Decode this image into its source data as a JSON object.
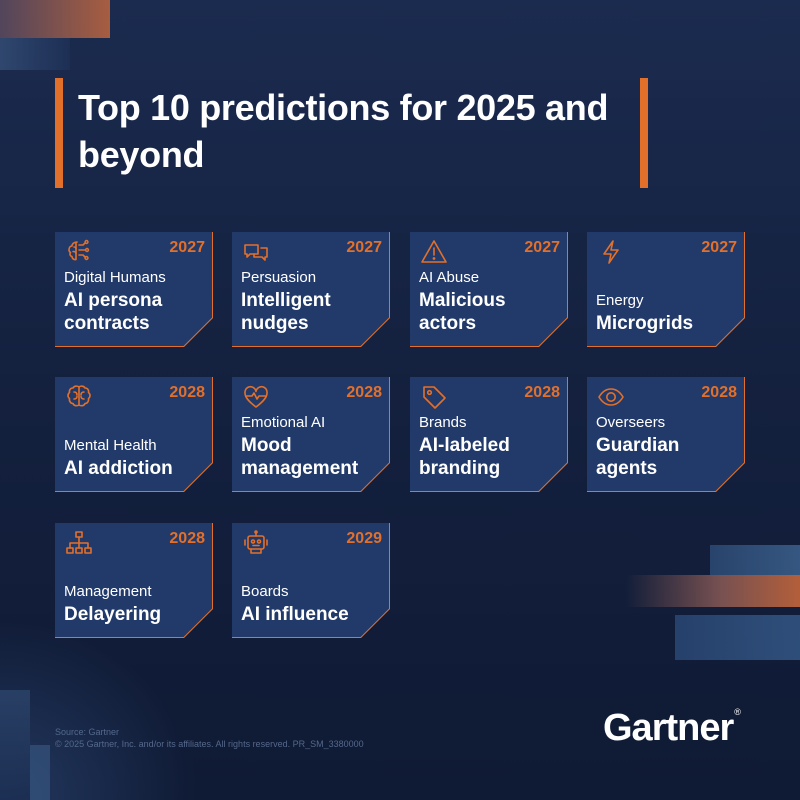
{
  "title": "Top 10 predictions for 2025 and beyond",
  "predictions": [
    {
      "year": "2027",
      "category": "Digital Humans",
      "headline": "AI persona contracts",
      "icon": "ai-brain-icon"
    },
    {
      "year": "2027",
      "category": "Persuasion",
      "headline": "Intelligent nudges",
      "icon": "chat-bubbles-icon"
    },
    {
      "year": "2027",
      "category": "AI Abuse",
      "headline": "Malicious actors",
      "icon": "warning-icon"
    },
    {
      "year": "2027",
      "category": "Energy",
      "headline": "Microgrids",
      "icon": "lightning-icon"
    },
    {
      "year": "2028",
      "category": "Mental Health",
      "headline": "AI addiction",
      "icon": "brain-icon"
    },
    {
      "year": "2028",
      "category": "Emotional AI",
      "headline": "Mood management",
      "icon": "heart-pulse-icon"
    },
    {
      "year": "2028",
      "category": "Brands",
      "headline": "AI-labeled branding",
      "icon": "tag-icon"
    },
    {
      "year": "2028",
      "category": "Overseers",
      "headline": "Guardian agents",
      "icon": "eye-icon"
    },
    {
      "year": "2028",
      "category": "Management",
      "headline": "Delayering",
      "icon": "org-chart-icon"
    },
    {
      "year": "2029",
      "category": "Boards",
      "headline": "AI influence",
      "icon": "robot-icon"
    }
  ],
  "footer": {
    "source": "Source: Gartner",
    "copyright": "© 2025 Gartner, Inc. and/or its affiliates. All rights reserved. PR_SM_3380000"
  },
  "logo": {
    "text": "Gartner",
    "mark": "®"
  },
  "colors": {
    "accent": "#e3702a",
    "card": "#223a6a",
    "background": "#14213f"
  }
}
